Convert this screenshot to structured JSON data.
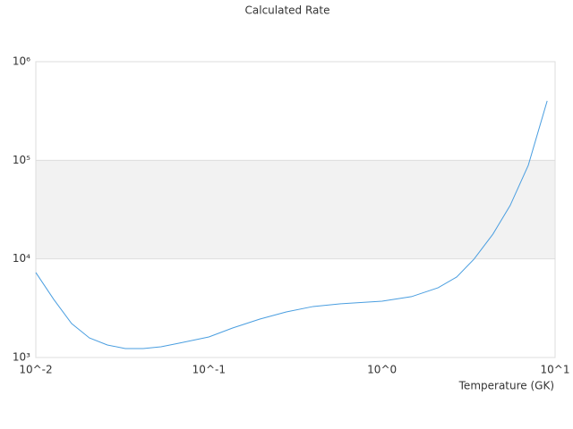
{
  "chart_data": {
    "type": "line",
    "title": "Calculated Rate",
    "x_label": "Temperature (GK)",
    "x_scale": "log",
    "y_scale": "log",
    "x": [
      0.01,
      0.0127,
      0.0161,
      0.0204,
      0.0259,
      0.0329,
      0.0417,
      0.0529,
      0.0671,
      0.1,
      0.137,
      0.197,
      0.28,
      0.4,
      0.57,
      1,
      1.48,
      2.11,
      2.7,
      3.4,
      4.37,
      5.5,
      7.0,
      9.0
    ],
    "series": [
      {
        "color": "#4a9ee0",
        "values": [
          7270,
          3880,
          2210,
          1580,
          1340,
          1232,
          1232,
          1284,
          1396,
          1616,
          1990,
          2454,
          2900,
          3290,
          3500,
          3724,
          4140,
          5100,
          6550,
          9940,
          17800,
          34800,
          89000,
          400000
        ]
      }
    ],
    "xlim": [
      0.01,
      10
    ],
    "xticks": [
      {
        "value": 0.01,
        "label": "10^-2"
      },
      {
        "value": 0.1,
        "label": "10^-1"
      },
      {
        "value": 1,
        "label": "10^0"
      },
      {
        "value": 10,
        "label": "10^1"
      }
    ],
    "ylim": [
      1000,
      1000000
    ],
    "yticks": [
      {
        "value": 1000,
        "label": "10³"
      },
      {
        "value": 10000,
        "label": "10⁴"
      },
      {
        "value": 100000,
        "label": "10⁵"
      },
      {
        "value": 1000000,
        "label": "10⁶"
      }
    ],
    "grid": true,
    "alternate_band_color": "#f2f2f2"
  }
}
